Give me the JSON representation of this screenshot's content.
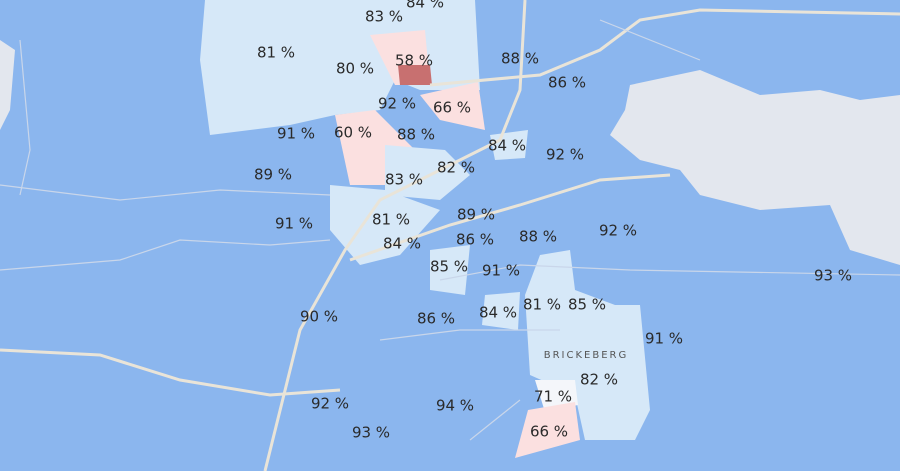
{
  "map": {
    "place_label": "BRICKEBERG",
    "area_labels": [
      "84 %",
      "83 %",
      "81 %",
      "58 %",
      "80 %",
      "88 %",
      "86 %",
      "92 %",
      "66 %",
      "91 %",
      "60 %",
      "88 %",
      "84 %",
      "92 %",
      "89 %",
      "82 %",
      "83 %",
      "91 %",
      "81 %",
      "89 %",
      "84 %",
      "86 %",
      "88 %",
      "92 %",
      "85 %",
      "91 %",
      "93 %",
      "81 %",
      "85 %",
      "84 %",
      "90 %",
      "86 %",
      "91 %",
      "82 %",
      "71 %",
      "92 %",
      "94 %",
      "93 %",
      "66 %"
    ]
  }
}
